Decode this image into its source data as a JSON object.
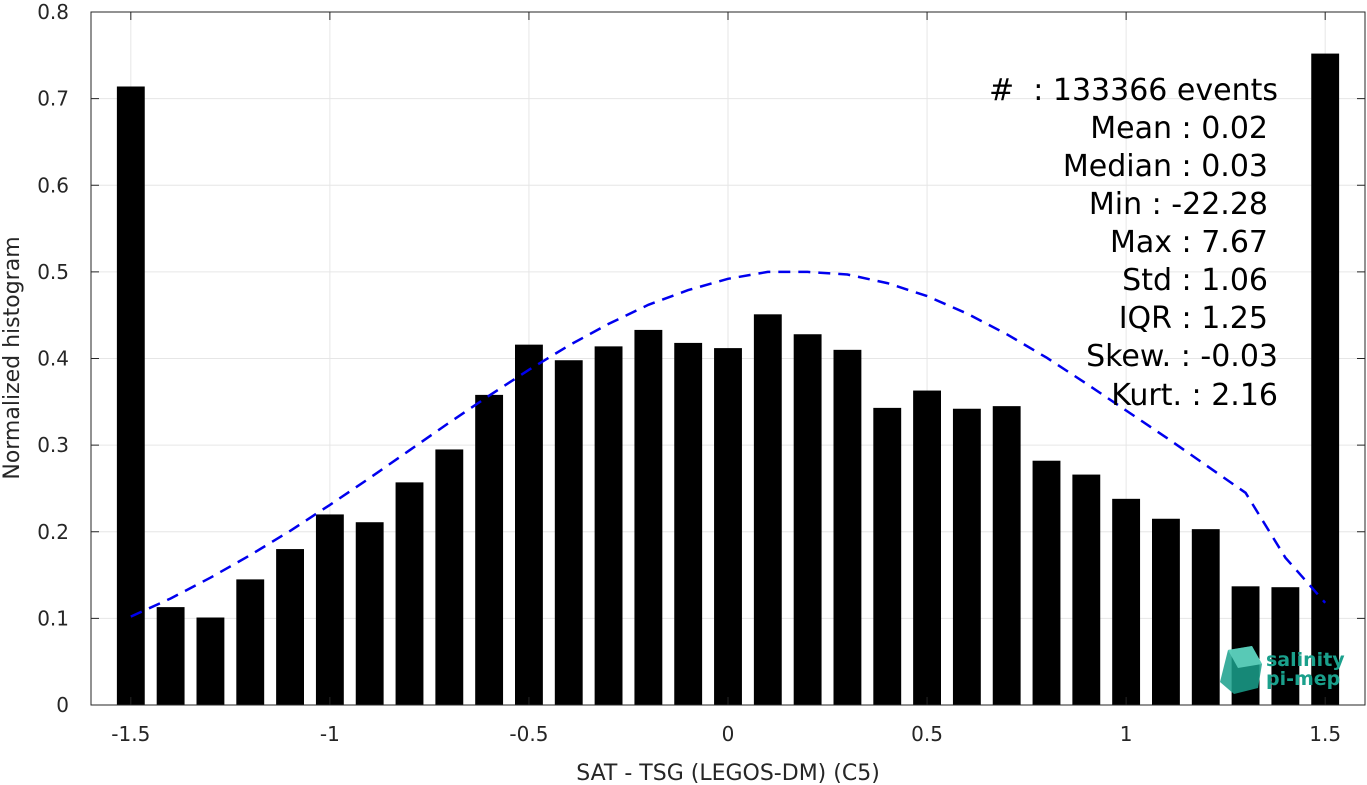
{
  "chart_data": {
    "type": "bar",
    "xlabel": "SAT - TSG (LEGOS-DM) (C5)",
    "ylabel": "Normalized histogram",
    "xlim": [
      -1.6,
      1.6
    ],
    "ylim": [
      0,
      0.8
    ],
    "xticks": [
      "-1.5",
      "-1",
      "-0.5",
      "0",
      "0.5",
      "1",
      "1.5"
    ],
    "yticks": [
      "0",
      "0.1",
      "0.2",
      "0.3",
      "0.4",
      "0.5",
      "0.6",
      "0.7",
      "0.8"
    ],
    "grid": true,
    "bar_color": "#000000",
    "bars": {
      "x": [
        -1.5,
        -1.4,
        -1.3,
        -1.2,
        -1.1,
        -1.0,
        -0.9,
        -0.8,
        -0.7,
        -0.6,
        -0.5,
        -0.4,
        -0.3,
        -0.2,
        -0.1,
        0.0,
        0.1,
        0.2,
        0.3,
        0.4,
        0.5,
        0.6,
        0.7,
        0.8,
        0.9,
        1.0,
        1.1,
        1.2,
        1.3,
        1.4,
        1.5
      ],
      "values": [
        0.714,
        0.113,
        0.101,
        0.145,
        0.18,
        0.22,
        0.211,
        0.257,
        0.295,
        0.358,
        0.416,
        0.398,
        0.414,
        0.433,
        0.418,
        0.412,
        0.451,
        0.428,
        0.41,
        0.343,
        0.363,
        0.342,
        0.345,
        0.282,
        0.266,
        0.238,
        0.215,
        0.203,
        0.137,
        0.136,
        0.752
      ]
    },
    "fit_curve": {
      "style": "dashed",
      "color": "#0000ee",
      "x": [
        -1.5,
        -1.4,
        -1.3,
        -1.2,
        -1.1,
        -1.0,
        -0.9,
        -0.8,
        -0.7,
        -0.6,
        -0.5,
        -0.4,
        -0.3,
        -0.2,
        -0.1,
        0.0,
        0.1,
        0.2,
        0.3,
        0.4,
        0.5,
        0.6,
        0.7,
        0.8,
        0.9,
        1.0,
        1.1,
        1.2,
        1.3,
        1.4,
        1.5
      ],
      "y": [
        0.102,
        0.123,
        0.147,
        0.173,
        0.201,
        0.231,
        0.262,
        0.294,
        0.326,
        0.357,
        0.387,
        0.415,
        0.44,
        0.462,
        0.479,
        0.492,
        0.5,
        0.5,
        0.497,
        0.487,
        0.472,
        0.452,
        0.428,
        0.401,
        0.371,
        0.34,
        0.309,
        0.277,
        0.245,
        0.17,
        0.118
      ]
    }
  },
  "stats": [
    "#  : 133366 events",
    "Mean : 0.02",
    "Median : 0.03",
    "Min : -22.28",
    "Max : 7.67",
    "Std : 1.06",
    "IQR : 1.25",
    "Skew. : -0.03",
    "Kurt. : 2.16"
  ],
  "logo": {
    "line1": "salinity",
    "line2": "pi-mep",
    "color": "#1aa08c"
  }
}
